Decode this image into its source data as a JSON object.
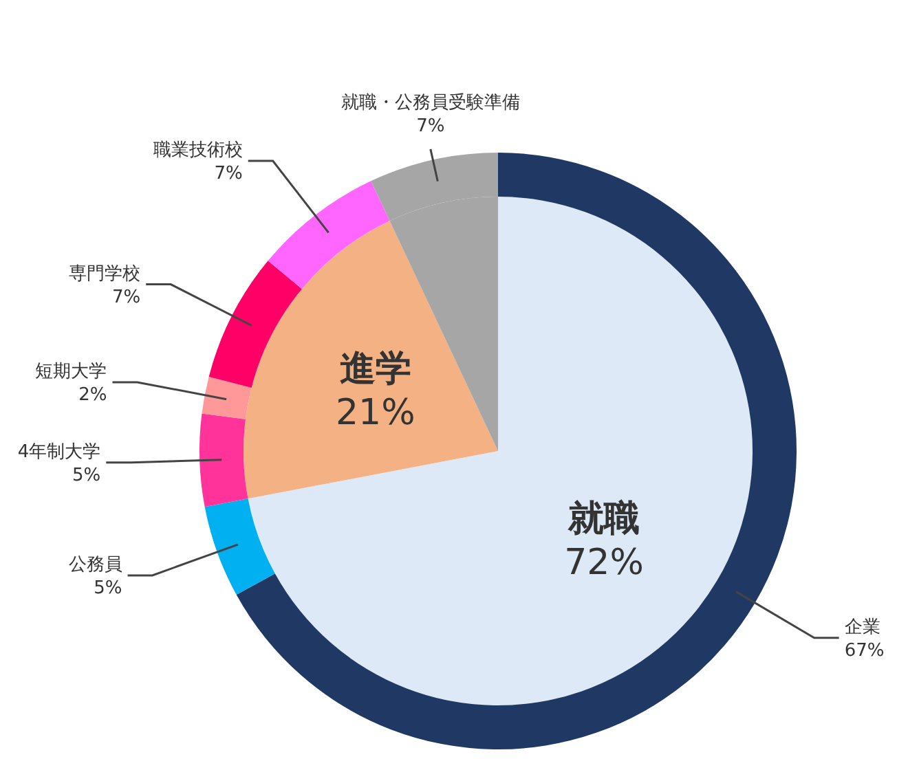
{
  "chart_data": [
    {
      "type": "pie",
      "categories": [
        "就職",
        "進学",
        null
      ],
      "values": [
        72,
        21,
        7
      ],
      "value_labels": [
        "72%",
        "21%",
        null
      ],
      "colors": [
        "#dde9f6",
        "#f4b183",
        "#a6a6a6"
      ]
    },
    {
      "type": "donut",
      "categories": [
        "企業",
        "公務員",
        "4年制大学",
        "短期大学",
        "専門学校",
        "職業技術校",
        "就職・公務員受験準備"
      ],
      "values": [
        67,
        5,
        5,
        2,
        7,
        7,
        7
      ],
      "value_labels": [
        "67%",
        "5%",
        "5%",
        "2%",
        "7%",
        "7%",
        "7%"
      ],
      "colors": [
        "#1f3864",
        "#00b0f0",
        "#ff3399",
        "#ff9999",
        "#ff0066",
        "#ff66ff",
        "#a6a6a6"
      ]
    }
  ]
}
